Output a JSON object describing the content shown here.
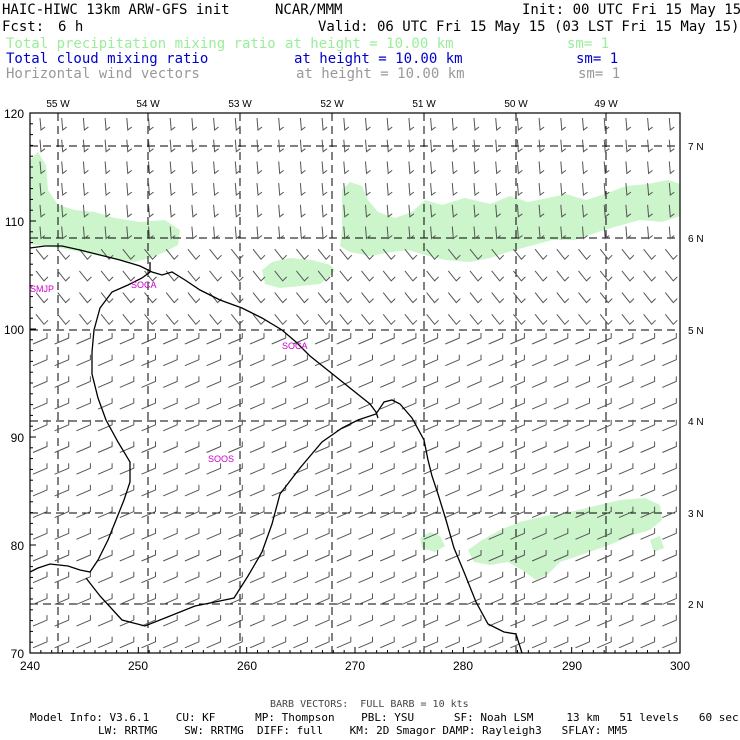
{
  "header": {
    "title_left": "HAIC-HIWC 13km ARW-GFS init",
    "title_center": "NCAR/MMM",
    "init_label": "Init: 00 UTC Fri 15 May 15",
    "fcst_label": "Fcst:",
    "fcst_value": "6 h",
    "valid_label": "Valid: 06 UTC Fri 15 May 15 (03 LST Fri 15 May 15)"
  },
  "fields": [
    {
      "name": "Total precipitation mixing ratio",
      "height": "at height = 10.00 km",
      "sm": "sm= 1",
      "color": "#99ee99"
    },
    {
      "name": "Total cloud mixing ratio",
      "height": "at height = 10.00 km",
      "sm": "sm= 1",
      "color": "#0000cc"
    },
    {
      "name": "Horizontal wind vectors",
      "height": "at height = 10.00 km",
      "sm": "sm= 1",
      "color": "#999999"
    }
  ],
  "map": {
    "x_ticks": [
      "240",
      "250",
      "260",
      "270",
      "280",
      "290",
      "300"
    ],
    "y_ticks": [
      "120",
      "110",
      "100",
      "90",
      "80",
      "70"
    ],
    "lon_labels": [
      "55 W",
      "54 W",
      "53 W",
      "52 W",
      "51 W",
      "50 W",
      "49 W"
    ],
    "lat_labels": [
      "7 N",
      "6 N",
      "5 N",
      "4 N",
      "3 N",
      "2 N"
    ],
    "stations": [
      "SMJP",
      "SOCA",
      "SOCA",
      "SOOS"
    ],
    "station_color": "#cc00cc",
    "land_color": "#000000",
    "precip_color": "#ccf5cc",
    "barb_color": "#555555"
  },
  "footer": {
    "barb_note": "BARB VECTORS:  FULL BARB = 10 kts",
    "line1": "Model Info: V3.6.1    CU: KF      MP: Thompson    PBL: YSU      SF: Noah LSM     13 km   51 levels   60 sec",
    "line2": "LW: RRTMG    SW: RRTMG  DIFF: full    KM: 2D Smagor DAMP: Rayleigh3   SFLAY: MM5"
  }
}
